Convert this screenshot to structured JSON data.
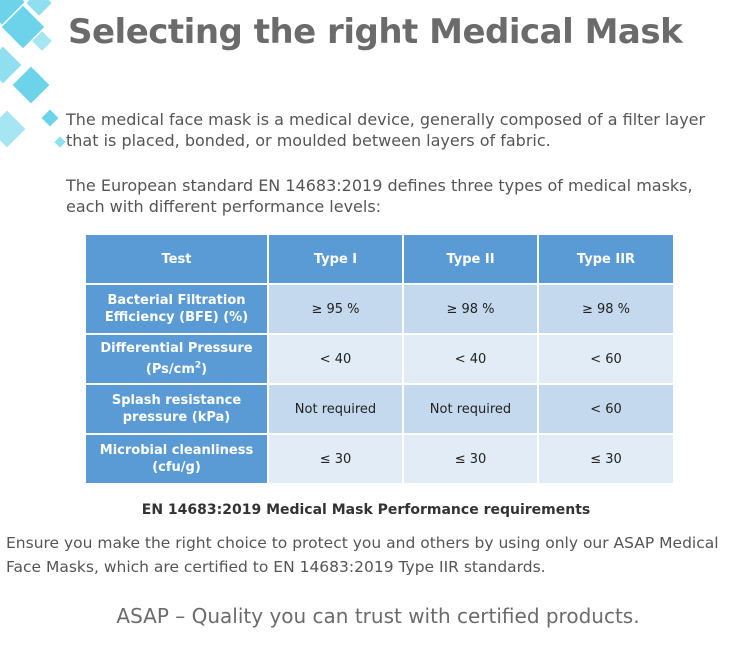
{
  "header": {
    "title": "Selecting the right Medical Mask"
  },
  "intro": {
    "paragraph_1": "The medical face mask is a medical device, generally composed of a filter layer that is placed, bonded, or moulded between layers of fabric.",
    "paragraph_2": "The European standard EN 14683:2019 defines three types of medical masks, each with different performance levels:"
  },
  "table": {
    "headers": [
      "Test",
      "Type I",
      "Type II",
      "Type IIR"
    ],
    "rows": [
      {
        "test": "Bacterial Filtration Efficiency (BFE) (%)",
        "values": [
          "≥ 95 %",
          "≥ 98 %",
          "≥ 98 %"
        ]
      },
      {
        "test_main": "Differential Pressure",
        "test_unit_base": "(Ps/cm",
        "test_unit_sup": "2",
        "test_unit_end": ")",
        "values": [
          "< 40",
          "< 40",
          "< 60"
        ]
      },
      {
        "test": "Splash resistance pressure (kPa)",
        "values": [
          "Not required",
          "Not required",
          "< 60"
        ]
      },
      {
        "test": "Microbial cleanliness (cfu/g)",
        "values": [
          "≤ 30",
          "≤ 30",
          "≤ 30"
        ]
      }
    ],
    "caption": "EN 14683:2019 Medical Mask Performance requirements"
  },
  "footer": {
    "note": "Ensure you make the right choice to protect you and others by using only our ASAP Medical Face Masks, which are certified to EN 14683:2019 Type IIR standards.",
    "tagline": "ASAP – Quality you can trust with certified products."
  },
  "colors": {
    "accent_cyan": "#6dd3ea",
    "table_header": "#5b9bd5",
    "cell_dark": "#c4d9ed",
    "cell_light": "#e2ecf6"
  }
}
